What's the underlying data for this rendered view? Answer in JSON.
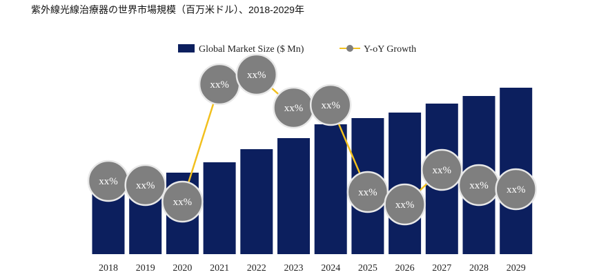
{
  "chart_data": {
    "type": "bar",
    "title": "紫外線光線治療器の世界市場規模（百万米ドル）、2018-2029年",
    "categories": [
      "2018",
      "2019",
      "2020",
      "2021",
      "2022",
      "2023",
      "2024",
      "2025",
      "2026",
      "2027",
      "2028",
      "2029"
    ],
    "series": [
      {
        "name": "Global Market Size ($ Mn)",
        "type": "bar",
        "values": [
          100,
          103,
          118,
          133,
          152,
          168,
          188,
          197,
          205,
          218,
          229,
          241
        ]
      },
      {
        "name": "Y-oY Growth",
        "type": "line",
        "values": [
          24,
          21,
          9,
          94,
          101,
          77,
          79,
          16,
          7,
          32,
          21,
          18
        ],
        "labels": [
          "xx%",
          "xx%",
          "xx%",
          "xx%",
          "xx%",
          "xx%",
          "xx%",
          "xx%",
          "xx%",
          "xx%",
          "xx%",
          "xx%"
        ]
      }
    ],
    "xlabel": "",
    "ylabel": "",
    "grid": false,
    "legend": "top-center",
    "colors": {
      "bar": "#0c1f5e",
      "line": "#f2c01e",
      "marker": "#7f7f7f"
    }
  }
}
